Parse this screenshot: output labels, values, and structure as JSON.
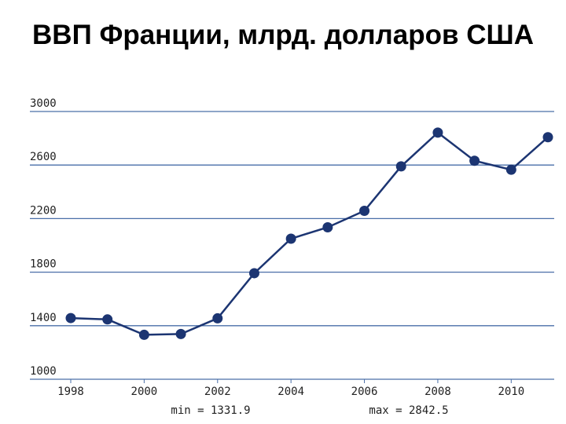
{
  "chart_data": {
    "type": "line",
    "title": "ВВП Франции, млрд. долларов США",
    "x": [
      1998,
      1999,
      2000,
      2001,
      2002,
      2003,
      2004,
      2005,
      2006,
      2007,
      2008,
      2009,
      2010,
      2011
    ],
    "series": [
      {
        "name": "ВВП",
        "color": "#1c3572",
        "values": [
          1457,
          1447,
          1331.9,
          1338,
          1455,
          1792,
          2050,
          2135,
          2258,
          2590,
          2842.5,
          2632,
          2565,
          2808
        ]
      }
    ],
    "xlim": [
      1998,
      2011
    ],
    "xticks": [
      1998,
      2000,
      2002,
      2004,
      2006,
      2008,
      2010
    ],
    "ylim": [
      1000,
      3000
    ],
    "yticks": [
      1000,
      1400,
      1800,
      2200,
      2600,
      3000
    ],
    "grid": true,
    "annotations": [
      "min = 1331.9",
      "max = 2842.5"
    ]
  }
}
